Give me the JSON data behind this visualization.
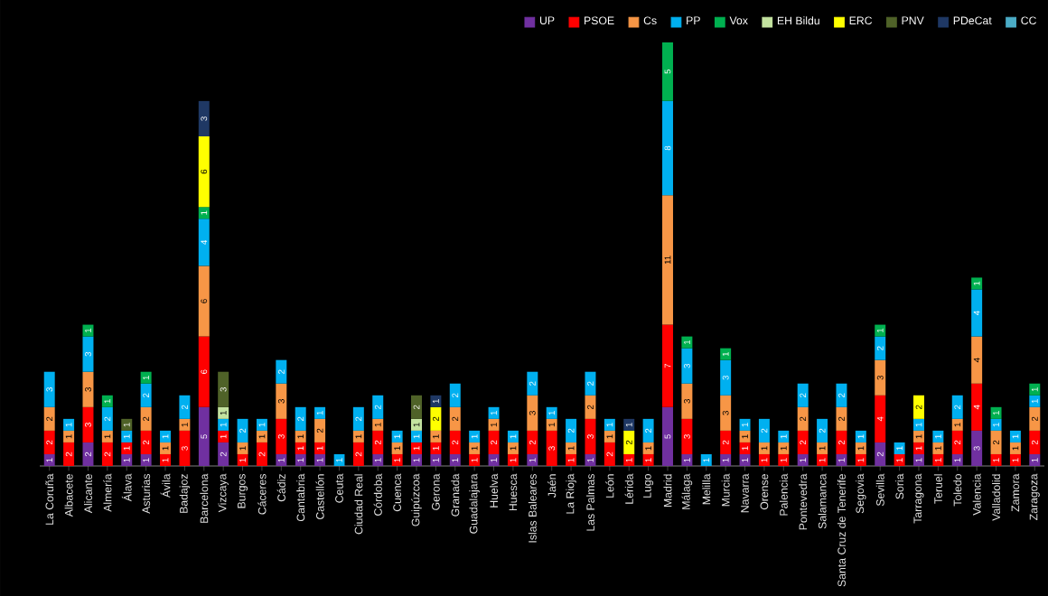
{
  "chart_data": {
    "type": "bar",
    "stacked": true,
    "data_labels": true,
    "tick_labels": "x",
    "legend": "top right",
    "categories": [
      "La Coruña",
      "Albacete",
      "Alicante",
      "Almería",
      "Álava",
      "Asturias",
      "Ávila",
      "Badajoz",
      "Barcelona",
      "Vizcaya",
      "Burgos",
      "Cáceres",
      "Cádiz",
      "Cantabria",
      "Castellón",
      "Ceuta",
      "Ciudad Real",
      "Córdoba",
      "Cuenca",
      "Guipúzcoa",
      "Gerona",
      "Granada",
      "Guadalajara",
      "Huelva",
      "Huesca",
      "Islas Baleares",
      "Jaén",
      "La Rioja",
      "Las Palmas",
      "León",
      "Lérida",
      "Lugo",
      "Madrid",
      "Málaga",
      "Melilla",
      "Murcia",
      "Navarra",
      "Orense",
      "Palencia",
      "Pontevedra",
      "Salamanca",
      "Santa Cruz de Tenerife",
      "Segovia",
      "Sevilla",
      "Soria",
      "Tarragona",
      "Teruel",
      "Toledo",
      "Valencia",
      "Valladolid",
      "Zamora",
      "Zaragoza"
    ],
    "series": [
      {
        "name": "UP",
        "color": "#7030a0",
        "values": [
          1,
          null,
          2,
          null,
          1,
          1,
          null,
          null,
          5,
          2,
          null,
          null,
          1,
          1,
          1,
          null,
          null,
          1,
          null,
          1,
          1,
          1,
          null,
          1,
          null,
          1,
          null,
          null,
          1,
          null,
          null,
          null,
          5,
          1,
          null,
          1,
          1,
          null,
          null,
          1,
          null,
          1,
          null,
          2,
          null,
          1,
          null,
          1,
          3,
          null,
          null,
          1
        ]
      },
      {
        "name": "PSOE",
        "color": "#ff0000",
        "values": [
          2,
          2,
          3,
          2,
          1,
          2,
          1,
          3,
          6,
          1,
          1,
          2,
          3,
          1,
          1,
          null,
          2,
          2,
          1,
          1,
          1,
          2,
          1,
          2,
          1,
          2,
          3,
          1,
          3,
          2,
          1,
          1,
          7,
          3,
          null,
          2,
          1,
          1,
          1,
          2,
          1,
          2,
          1,
          4,
          1,
          1,
          1,
          2,
          4,
          1,
          1,
          2
        ]
      },
      {
        "name": "Cs",
        "color": "#f79646",
        "values": [
          2,
          1,
          3,
          1,
          null,
          2,
          1,
          1,
          6,
          null,
          1,
          1,
          3,
          1,
          2,
          null,
          1,
          1,
          1,
          null,
          1,
          2,
          1,
          1,
          1,
          3,
          1,
          1,
          2,
          1,
          null,
          1,
          11,
          3,
          null,
          3,
          1,
          1,
          1,
          2,
          1,
          2,
          1,
          3,
          null,
          1,
          1,
          1,
          4,
          2,
          1,
          2
        ]
      },
      {
        "name": "PP",
        "color": "#00b0f0",
        "values": [
          3,
          1,
          3,
          2,
          1,
          2,
          1,
          2,
          4,
          1,
          2,
          1,
          2,
          2,
          1,
          1,
          2,
          2,
          1,
          1,
          null,
          2,
          1,
          1,
          1,
          2,
          1,
          2,
          2,
          1,
          null,
          2,
          8,
          3,
          1,
          3,
          1,
          2,
          1,
          2,
          2,
          2,
          1,
          2,
          1,
          1,
          1,
          2,
          4,
          1,
          1,
          1
        ]
      },
      {
        "name": "Vox",
        "color": "#00b050",
        "values": [
          null,
          null,
          1,
          1,
          null,
          1,
          null,
          null,
          1,
          null,
          null,
          null,
          null,
          null,
          null,
          null,
          null,
          null,
          null,
          null,
          null,
          null,
          null,
          null,
          null,
          null,
          null,
          null,
          null,
          null,
          null,
          null,
          5,
          1,
          null,
          1,
          null,
          null,
          null,
          null,
          null,
          null,
          null,
          1,
          null,
          null,
          null,
          null,
          1,
          1,
          null,
          1
        ]
      },
      {
        "name": "EH Bildu",
        "color": "#c4e3a0",
        "values": [
          null,
          null,
          null,
          null,
          null,
          null,
          null,
          null,
          null,
          1,
          null,
          null,
          null,
          null,
          null,
          null,
          null,
          null,
          null,
          1,
          null,
          null,
          null,
          null,
          null,
          null,
          null,
          null,
          null,
          null,
          null,
          null,
          null,
          null,
          null,
          null,
          null,
          null,
          null,
          null,
          null,
          null,
          null,
          null,
          null,
          null,
          null,
          null,
          null,
          null,
          null,
          null
        ]
      },
      {
        "name": "ERC",
        "color": "#ffff00",
        "values": [
          null,
          null,
          null,
          null,
          null,
          null,
          null,
          null,
          6,
          null,
          null,
          null,
          null,
          null,
          null,
          null,
          null,
          null,
          null,
          null,
          2,
          null,
          null,
          null,
          null,
          null,
          null,
          null,
          null,
          null,
          2,
          null,
          null,
          null,
          null,
          null,
          null,
          null,
          null,
          null,
          null,
          null,
          null,
          null,
          null,
          2,
          null,
          null,
          null,
          null,
          null,
          null
        ]
      },
      {
        "name": "PNV",
        "color": "#4f6228",
        "values": [
          null,
          null,
          null,
          null,
          1,
          null,
          null,
          null,
          null,
          3,
          null,
          null,
          null,
          null,
          null,
          null,
          null,
          null,
          null,
          2,
          null,
          null,
          null,
          null,
          null,
          null,
          null,
          null,
          null,
          null,
          null,
          null,
          null,
          null,
          null,
          null,
          null,
          null,
          null,
          null,
          null,
          null,
          null,
          null,
          null,
          null,
          null,
          null,
          null,
          null,
          null,
          null
        ]
      },
      {
        "name": "PDeCat",
        "color": "#1f3864",
        "values": [
          null,
          null,
          null,
          null,
          null,
          null,
          null,
          null,
          3,
          null,
          null,
          null,
          null,
          null,
          null,
          null,
          null,
          null,
          null,
          null,
          1,
          null,
          null,
          null,
          null,
          null,
          null,
          null,
          null,
          null,
          1,
          null,
          null,
          null,
          null,
          null,
          null,
          null,
          null,
          null,
          null,
          null,
          null,
          null,
          null,
          null,
          null,
          null,
          null,
          null,
          null,
          null
        ]
      },
      {
        "name": "CC",
        "color": "#4bacc6",
        "values": [
          null,
          null,
          null,
          null,
          null,
          null,
          null,
          null,
          null,
          null,
          null,
          null,
          null,
          null,
          null,
          null,
          null,
          null,
          null,
          null,
          null,
          null,
          null,
          null,
          null,
          null,
          null,
          null,
          null,
          null,
          null,
          null,
          null,
          null,
          null,
          null,
          null,
          null,
          null,
          null,
          null,
          null,
          null,
          null,
          null,
          null,
          null,
          null,
          null,
          null,
          null,
          null
        ]
      }
    ]
  }
}
